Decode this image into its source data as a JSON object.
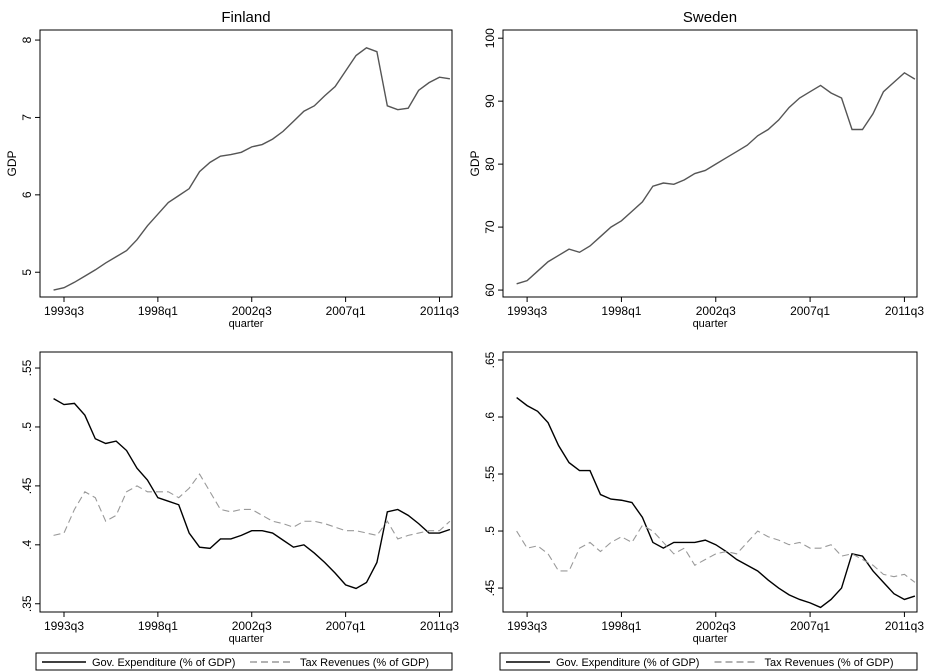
{
  "chart_data": [
    {
      "type": "line",
      "title": "Finland",
      "ylabel": "GDP",
      "xlabel": "quarter",
      "x": [
        1993,
        1993.5,
        1994,
        1994.5,
        1995,
        1995.5,
        1996,
        1996.5,
        1997,
        1997.5,
        1998,
        1998.5,
        1999,
        1999.5,
        2000,
        2000.5,
        2001,
        2001.5,
        2002,
        2002.5,
        2003,
        2003.5,
        2004,
        2004.5,
        2005,
        2005.5,
        2006,
        2006.5,
        2007,
        2007.5,
        2008,
        2008.5,
        2009,
        2009.5,
        2010,
        2010.5,
        2011,
        2011.5,
        2012
      ],
      "series": [
        {
          "color": "#555555",
          "values": [
            4.77,
            4.8,
            4.87,
            4.95,
            5.03,
            5.12,
            5.2,
            5.28,
            5.42,
            5.6,
            5.75,
            5.9,
            5.99,
            6.08,
            6.3,
            6.42,
            6.5,
            6.52,
            6.55,
            6.62,
            6.65,
            6.72,
            6.82,
            6.95,
            7.08,
            7.15,
            7.28,
            7.4,
            7.6,
            7.8,
            7.9,
            7.85,
            7.15,
            7.1,
            7.12,
            7.35,
            7.45,
            7.52,
            7.5
          ]
        }
      ],
      "xlim": [
        1992.35,
        2012.1
      ],
      "xticks": [
        {
          "value": 1993.5,
          "label": "1993q3"
        },
        {
          "value": 1998,
          "label": "1998q1"
        },
        {
          "value": 2002.5,
          "label": "2002q3"
        },
        {
          "value": 2007,
          "label": "2007q1"
        },
        {
          "value": 2011.5,
          "label": "2011q3"
        }
      ],
      "ylim": [
        4.68,
        8.13
      ],
      "yticks": [
        5,
        6,
        7,
        8
      ]
    },
    {
      "type": "line",
      "title": "Sweden",
      "ylabel": "GDP",
      "xlabel": "quarter",
      "x": [
        1993,
        1993.5,
        1994,
        1994.5,
        1995,
        1995.5,
        1996,
        1996.5,
        1997,
        1997.5,
        1998,
        1998.5,
        1999,
        1999.5,
        2000,
        2000.5,
        2001,
        2001.5,
        2002,
        2002.5,
        2003,
        2003.5,
        2004,
        2004.5,
        2005,
        2005.5,
        2006,
        2006.5,
        2007,
        2007.5,
        2008,
        2008.5,
        2009,
        2009.5,
        2010,
        2010.5,
        2011,
        2011.5,
        2012
      ],
      "series": [
        {
          "color": "#555555",
          "values": [
            61,
            61.5,
            63,
            64.5,
            65.5,
            66.5,
            66,
            67,
            68.5,
            70,
            71,
            72.5,
            74,
            76.5,
            77,
            76.8,
            77.5,
            78.5,
            79,
            80,
            81,
            82,
            83,
            84.5,
            85.5,
            87,
            89,
            90.5,
            91.5,
            92.5,
            91.3,
            90.5,
            85.5,
            85.5,
            88,
            91.5,
            93,
            94.5,
            93.5
          ]
        }
      ],
      "xlim": [
        1992.35,
        2012.1
      ],
      "xticks": [
        {
          "value": 1993.5,
          "label": "1993q3"
        },
        {
          "value": 1998,
          "label": "1998q1"
        },
        {
          "value": 2002.5,
          "label": "2002q3"
        },
        {
          "value": 2007,
          "label": "2007q1"
        },
        {
          "value": 2011.5,
          "label": "2011q3"
        }
      ],
      "ylim": [
        58.9,
        101.3
      ],
      "yticks": [
        60,
        70,
        80,
        90,
        100
      ]
    },
    {
      "type": "line",
      "xlabel": "quarter",
      "x": [
        1993,
        1993.5,
        1994,
        1994.5,
        1995,
        1995.5,
        1996,
        1996.5,
        1997,
        1997.5,
        1998,
        1998.5,
        1999,
        1999.5,
        2000,
        2000.5,
        2001,
        2001.5,
        2002,
        2002.5,
        2003,
        2003.5,
        2004,
        2004.5,
        2005,
        2005.5,
        2006,
        2006.5,
        2007,
        2007.5,
        2008,
        2008.5,
        2009,
        2009.5,
        2010,
        2010.5,
        2011,
        2011.5,
        2012
      ],
      "series": [
        {
          "name": "Gov. Expenditure (% of GDP)",
          "color": "#000000",
          "dashed": false,
          "values": [
            0.524,
            0.519,
            0.52,
            0.51,
            0.49,
            0.486,
            0.488,
            0.48,
            0.465,
            0.455,
            0.44,
            0.437,
            0.434,
            0.41,
            0.398,
            0.397,
            0.405,
            0.405,
            0.408,
            0.412,
            0.412,
            0.41,
            0.404,
            0.398,
            0.4,
            0.393,
            0.385,
            0.376,
            0.366,
            0.363,
            0.368,
            0.385,
            0.428,
            0.43,
            0.425,
            0.418,
            0.41,
            0.41,
            0.413
          ]
        },
        {
          "name": "Tax Revenues (% of GDP)",
          "color": "#999999",
          "dashed": true,
          "values": [
            0.408,
            0.41,
            0.43,
            0.445,
            0.44,
            0.42,
            0.425,
            0.445,
            0.45,
            0.445,
            0.445,
            0.445,
            0.44,
            0.448,
            0.46,
            0.445,
            0.43,
            0.428,
            0.43,
            0.43,
            0.425,
            0.42,
            0.418,
            0.415,
            0.42,
            0.42,
            0.418,
            0.415,
            0.412,
            0.412,
            0.41,
            0.408,
            0.42,
            0.405,
            0.408,
            0.41,
            0.412,
            0.412,
            0.42
          ]
        }
      ],
      "xlim": [
        1992.35,
        2012.1
      ],
      "xticks": [
        {
          "value": 1993.5,
          "label": "1993q3"
        },
        {
          "value": 1998,
          "label": "1998q1"
        },
        {
          "value": 2002.5,
          "label": "2002q3"
        },
        {
          "value": 2007,
          "label": "2007q1"
        },
        {
          "value": 2011.5,
          "label": "2011q3"
        }
      ],
      "ylim": [
        0.343,
        0.5636
      ],
      "yticks": [
        {
          "value": 0.35,
          "label": ".35"
        },
        {
          "value": 0.4,
          "label": ".4"
        },
        {
          "value": 0.45,
          "label": ".45"
        },
        {
          "value": 0.5,
          "label": ".5"
        },
        {
          "value": 0.55,
          "label": ".55"
        }
      ],
      "legend": "bottom"
    },
    {
      "type": "line",
      "xlabel": "quarter",
      "x": [
        1993,
        1993.5,
        1994,
        1994.5,
        1995,
        1995.5,
        1996,
        1996.5,
        1997,
        1997.5,
        1998,
        1998.5,
        1999,
        1999.5,
        2000,
        2000.5,
        2001,
        2001.5,
        2002,
        2002.5,
        2003,
        2003.5,
        2004,
        2004.5,
        2005,
        2005.5,
        2006,
        2006.5,
        2007,
        2007.5,
        2008,
        2008.5,
        2009,
        2009.5,
        2010,
        2010.5,
        2011,
        2011.5,
        2012
      ],
      "series": [
        {
          "name": "Gov. Expenditure (% of GDP)",
          "color": "#000000",
          "dashed": false,
          "values": [
            0.617,
            0.61,
            0.605,
            0.595,
            0.575,
            0.56,
            0.553,
            0.553,
            0.532,
            0.528,
            0.527,
            0.525,
            0.512,
            0.49,
            0.485,
            0.49,
            0.49,
            0.49,
            0.492,
            0.488,
            0.482,
            0.475,
            0.47,
            0.465,
            0.457,
            0.45,
            0.444,
            0.44,
            0.437,
            0.433,
            0.44,
            0.45,
            0.48,
            0.478,
            0.465,
            0.455,
            0.445,
            0.44,
            0.443
          ]
        },
        {
          "name": "Tax Revenues (% of GDP)",
          "color": "#999999",
          "dashed": true,
          "values": [
            0.5,
            0.485,
            0.487,
            0.48,
            0.465,
            0.465,
            0.485,
            0.49,
            0.482,
            0.49,
            0.495,
            0.49,
            0.505,
            0.5,
            0.49,
            0.48,
            0.485,
            0.47,
            0.475,
            0.48,
            0.482,
            0.48,
            0.49,
            0.5,
            0.495,
            0.492,
            0.488,
            0.49,
            0.485,
            0.485,
            0.488,
            0.478,
            0.48,
            0.475,
            0.47,
            0.462,
            0.46,
            0.462,
            0.455
          ]
        }
      ],
      "xlim": [
        1992.35,
        2012.1
      ],
      "xticks": [
        {
          "value": 1993.5,
          "label": "1993q3"
        },
        {
          "value": 1998,
          "label": "1998q1"
        },
        {
          "value": 2002.5,
          "label": "2002q3"
        },
        {
          "value": 2007,
          "label": "2007q1"
        },
        {
          "value": 2011.5,
          "label": "2011q3"
        }
      ],
      "ylim": [
        0.429,
        0.657
      ],
      "yticks": [
        {
          "value": 0.45,
          "label": ".45"
        },
        {
          "value": 0.5,
          "label": ".5"
        },
        {
          "value": 0.55,
          "label": ".55"
        },
        {
          "value": 0.6,
          "label": ".6"
        },
        {
          "value": 0.65,
          "label": ".65"
        }
      ],
      "legend": "bottom"
    }
  ]
}
